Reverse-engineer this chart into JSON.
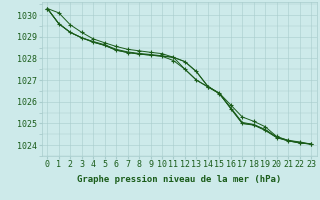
{
  "title": "Graphe pression niveau de la mer (hPa)",
  "xlabel_hours": [
    0,
    1,
    2,
    3,
    4,
    5,
    6,
    7,
    8,
    9,
    10,
    11,
    12,
    13,
    14,
    15,
    16,
    17,
    18,
    19,
    20,
    21,
    22,
    23
  ],
  "ylim": [
    1023.5,
    1030.6
  ],
  "yticks": [
    1024,
    1025,
    1026,
    1027,
    1028,
    1029,
    1030
  ],
  "background_color": "#cdeaea",
  "grid_color": "#a8cccc",
  "line_color": "#1a5c1a",
  "series": [
    [
      1030.3,
      1030.1,
      1029.55,
      1029.2,
      1028.9,
      1028.72,
      1028.55,
      1028.42,
      1028.35,
      1028.28,
      1028.22,
      1028.05,
      1027.85,
      1027.4,
      1026.7,
      1026.4,
      1025.85,
      1025.3,
      1025.1,
      1024.85,
      1024.4,
      1024.22,
      1024.15,
      1024.05
    ],
    [
      1030.3,
      1029.6,
      1029.2,
      1028.95,
      1028.78,
      1028.63,
      1028.42,
      1028.3,
      1028.23,
      1028.18,
      1028.12,
      1028.05,
      1027.85,
      1027.38,
      1026.72,
      1026.38,
      1025.72,
      1025.05,
      1024.95,
      1024.72,
      1024.38,
      1024.22,
      1024.12,
      1024.05
    ],
    [
      1030.3,
      1029.6,
      1029.2,
      1028.95,
      1028.75,
      1028.6,
      1028.38,
      1028.27,
      1028.2,
      1028.15,
      1028.1,
      1028.05,
      1027.5,
      1027.0,
      1026.7,
      1026.38,
      1025.7,
      1025.0,
      1024.95,
      1024.7,
      1024.35,
      1024.2,
      1024.1,
      1024.05
    ],
    [
      1030.3,
      1029.6,
      1029.2,
      1028.95,
      1028.75,
      1028.6,
      1028.38,
      1028.27,
      1028.2,
      1028.15,
      1028.1,
      1027.9,
      1027.5,
      1027.0,
      1026.68,
      1026.38,
      1025.68,
      1025.0,
      1024.92,
      1024.68,
      1024.35,
      1024.2,
      1024.1,
      1024.05
    ]
  ],
  "marker_series": [
    0,
    3
  ],
  "text_color": "#1a5c1a",
  "font_size_label": 6.5,
  "font_size_tick": 6.0,
  "figwidth": 3.2,
  "figheight": 2.0,
  "dpi": 100
}
